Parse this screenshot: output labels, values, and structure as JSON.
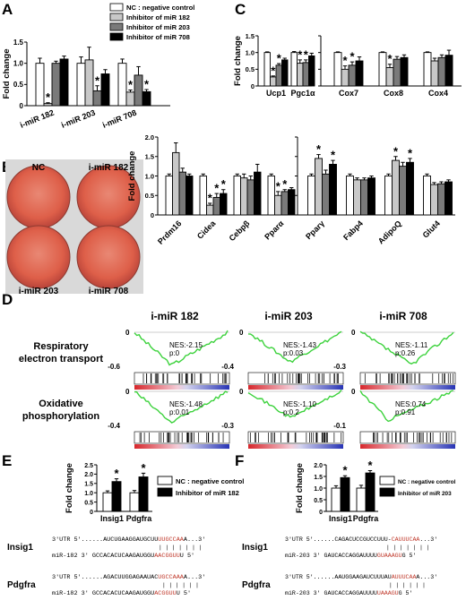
{
  "colors": {
    "nc": "#ffffff",
    "i182": "#c8c8c8",
    "i203": "#7a7a7a",
    "i708": "#000000",
    "curve": "#3cd23c",
    "seed_highlight": "#c0392b",
    "dish": "#e2664f"
  },
  "panel_letters": [
    "A",
    "B",
    "C",
    "D",
    "E",
    "F"
  ],
  "legend_a": [
    {
      "label": "NC : negative control",
      "key": "nc"
    },
    {
      "label": "Inhibitor of miR 182",
      "key": "i182"
    },
    {
      "label": "Inhibitor of miR 203",
      "key": "i203"
    },
    {
      "label": "Inhibitor of miR 708",
      "key": "i708"
    }
  ],
  "fold_change_label": "Fold change",
  "dish_labels": [
    "NC",
    "i-miR 182",
    "i-miR 203",
    "i-miR 708"
  ],
  "chart_data": [
    {
      "id": "A",
      "type": "bar",
      "ylabel": "Fold change",
      "ylim": [
        0,
        1.5
      ],
      "yticks": [
        "0",
        "0.5",
        "1.0",
        "1.5"
      ],
      "categories": [
        "i-miR 182",
        "i-miR 203",
        "i-miR 708"
      ],
      "series": [
        {
          "name": "NC : negative control",
          "key": "nc",
          "values": [
            1.0,
            1.0,
            1.0
          ],
          "err": [
            0.12,
            0.15,
            0.1
          ]
        },
        {
          "name": "Inhibitor of miR 182",
          "key": "i182",
          "values": [
            0.05,
            1.08,
            0.32
          ],
          "err": [
            0.02,
            0.3,
            0.05
          ]
        },
        {
          "name": "Inhibitor of miR 203",
          "key": "i203",
          "values": [
            1.0,
            0.35,
            0.72
          ],
          "err": [
            0.05,
            0.12,
            0.2
          ]
        },
        {
          "name": "Inhibitor of miR 708",
          "key": "i708",
          "values": [
            1.1,
            0.75,
            0.33
          ],
          "err": [
            0.07,
            0.1,
            0.05
          ]
        }
      ],
      "stars": [
        [
          0,
          1
        ],
        [
          1,
          2
        ],
        [
          2,
          1
        ],
        [
          2,
          3
        ]
      ]
    },
    {
      "id": "C-left",
      "type": "bar",
      "ylabel": "Fold change",
      "ylim": [
        0,
        1.5
      ],
      "yticks": [
        "0",
        "0.5",
        "1.0",
        "1.5"
      ],
      "categories": [
        "Ucp1",
        "Pgc1α"
      ],
      "series": [
        {
          "key": "nc",
          "values": [
            1.0,
            1.0
          ],
          "err": [
            0.02,
            0.03
          ]
        },
        {
          "key": "i182",
          "values": [
            0.27,
            0.68
          ],
          "err": [
            0.03,
            0.1
          ]
        },
        {
          "key": "i203",
          "values": [
            0.62,
            0.7
          ],
          "err": [
            0.05,
            0.08
          ]
        },
        {
          "key": "i708",
          "values": [
            0.78,
            0.9
          ],
          "err": [
            0.05,
            0.08
          ]
        }
      ],
      "stars": [
        [
          0,
          1
        ],
        [
          0,
          2
        ],
        [
          1,
          1
        ],
        [
          1,
          2
        ]
      ]
    },
    {
      "id": "C-right",
      "type": "bar",
      "ylim": [
        0,
        1.5
      ],
      "categories": [
        "Cox7",
        "Cox8",
        "Cox4"
      ],
      "series": [
        {
          "key": "nc",
          "values": [
            1.0,
            1.0,
            1.0
          ],
          "err": [
            0.02,
            0.02,
            0.02
          ]
        },
        {
          "key": "i182",
          "values": [
            0.5,
            0.55,
            0.75
          ],
          "err": [
            0.1,
            0.1,
            0.08
          ]
        },
        {
          "key": "i203",
          "values": [
            0.62,
            0.8,
            0.85
          ],
          "err": [
            0.1,
            0.08,
            0.08
          ]
        },
        {
          "key": "i708",
          "values": [
            0.75,
            0.85,
            0.92
          ],
          "err": [
            0.12,
            0.08,
            0.15
          ]
        }
      ],
      "stars": [
        [
          0,
          1
        ],
        [
          0,
          2
        ],
        [
          1,
          1
        ]
      ]
    },
    {
      "id": "B-left",
      "type": "bar",
      "ylabel": "Fold change",
      "ylim": [
        0,
        2.0
      ],
      "yticks": [
        "0",
        "0.5",
        "1.0",
        "1.5",
        "2.0"
      ],
      "categories": [
        "Prdm16",
        "Cidea",
        "Cebpβ",
        "Pparα"
      ],
      "series": [
        {
          "key": "nc",
          "values": [
            1.0,
            1.0,
            1.0,
            1.0
          ],
          "err": [
            0.05,
            0.05,
            0.05,
            0.05
          ]
        },
        {
          "key": "i182",
          "values": [
            1.6,
            0.25,
            0.95,
            0.5
          ],
          "err": [
            0.25,
            0.05,
            0.1,
            0.1
          ]
        },
        {
          "key": "i203",
          "values": [
            1.1,
            0.45,
            0.9,
            0.6
          ],
          "err": [
            0.1,
            0.1,
            0.1,
            0.05
          ]
        },
        {
          "key": "i708",
          "values": [
            1.0,
            0.55,
            1.1,
            0.65
          ],
          "err": [
            0.05,
            0.1,
            0.2,
            0.05
          ]
        }
      ],
      "stars": [
        [
          1,
          1
        ],
        [
          1,
          2
        ],
        [
          1,
          3
        ],
        [
          3,
          1
        ],
        [
          3,
          2
        ]
      ]
    },
    {
      "id": "B-right",
      "type": "bar",
      "ylim": [
        0,
        2.0
      ],
      "categories": [
        "Pparγ",
        "Fabp4",
        "AdipoQ",
        "Glut4"
      ],
      "series": [
        {
          "key": "nc",
          "values": [
            1.0,
            1.0,
            1.0,
            1.0
          ],
          "err": [
            0.05,
            0.05,
            0.05,
            0.05
          ]
        },
        {
          "key": "i182",
          "values": [
            1.45,
            0.9,
            1.4,
            0.78
          ],
          "err": [
            0.1,
            0.05,
            0.1,
            0.05
          ]
        },
        {
          "key": "i203",
          "values": [
            1.05,
            0.9,
            1.25,
            0.8
          ],
          "err": [
            0.1,
            0.05,
            0.1,
            0.05
          ]
        },
        {
          "key": "i708",
          "values": [
            1.3,
            0.95,
            1.35,
            0.85
          ],
          "err": [
            0.1,
            0.05,
            0.1,
            0.05
          ]
        }
      ],
      "stars": [
        [
          0,
          1
        ],
        [
          0,
          3
        ],
        [
          2,
          1
        ],
        [
          2,
          3
        ]
      ]
    },
    {
      "id": "E",
      "type": "bar",
      "ylabel": "Fold change",
      "ylim": [
        0,
        2.5
      ],
      "yticks": [
        "0",
        "0.5",
        "1.0",
        "1.5",
        "2.0",
        "2.5"
      ],
      "categories": [
        "Insig1",
        "Pdgfra"
      ],
      "series": [
        {
          "name": "NC : negative control",
          "key": "nc",
          "values": [
            1.0,
            1.0
          ],
          "err": [
            0.1,
            0.12
          ]
        },
        {
          "name": "Inhibitor of miR 182",
          "key": "i708",
          "values": [
            1.6,
            1.85
          ],
          "err": [
            0.15,
            0.2
          ]
        }
      ],
      "stars": [
        [
          0,
          1
        ],
        [
          1,
          1
        ]
      ]
    },
    {
      "id": "F",
      "type": "bar",
      "ylabel": "Fold change",
      "ylim": [
        0,
        2.0
      ],
      "yticks": [
        "0",
        "0.5",
        "1.0",
        "1.5",
        "2.0"
      ],
      "categories": [
        "Insig1",
        "Pdgfra"
      ],
      "series": [
        {
          "name": "NC : negative control",
          "key": "nc",
          "values": [
            1.0,
            1.0
          ],
          "err": [
            0.1,
            0.12
          ]
        },
        {
          "name": "Inhibitor of miR 203",
          "key": "i708",
          "values": [
            1.45,
            1.65
          ],
          "err": [
            0.08,
            0.1
          ]
        }
      ],
      "stars": [
        [
          0,
          1
        ],
        [
          1,
          1
        ]
      ]
    }
  ],
  "gsea": {
    "columns": [
      "i-miR 182",
      "i-miR 203",
      "i-miR 708"
    ],
    "rows": [
      "Respiratory\nelectron transport",
      "Oxidative\nphosphorylation"
    ],
    "panels": [
      {
        "row": 0,
        "col": 0,
        "nes": "NES:-2.15",
        "p": "p:0",
        "ytop": "0",
        "ybot": "-0.6",
        "min": -0.55,
        "minpos": 0.4
      },
      {
        "row": 0,
        "col": 1,
        "nes": "NES:-1.43",
        "p": "p:0.03",
        "ytop": "0",
        "ybot": "-0.4",
        "min": -0.33,
        "minpos": 0.45
      },
      {
        "row": 0,
        "col": 2,
        "nes": "NES:-1.11",
        "p": "p:0.26",
        "ytop": "0",
        "ybot": "-0.3",
        "min": -0.27,
        "minpos": 0.55
      },
      {
        "row": 1,
        "col": 0,
        "nes": "NES:-1.48",
        "p": "p:0.01",
        "ytop": "0",
        "ybot": "-0.4",
        "min": -0.35,
        "minpos": 0.4
      },
      {
        "row": 1,
        "col": 1,
        "nes": "NES:-1.10",
        "p": "p:0.2",
        "ytop": "0",
        "ybot": "-0.3",
        "min": -0.22,
        "minpos": 0.45
      },
      {
        "row": 1,
        "col": 2,
        "nes": "NES:0.74",
        "p": "p:0.91",
        "ytop": "0",
        "ybot": "-0.1",
        "min": -0.08,
        "minpos": 0.3
      }
    ]
  },
  "seq_e": [
    {
      "gene": "Insig1",
      "utr": {
        "prefix": "3'UTR  5'......AUCUGAAGGAUGCUU",
        "seed": "UUGCCAA",
        "suffix": "A...3'"
      },
      "mir": {
        "prefix": "miR-182  3'  GCCACACUCAAGAUGGU",
        "seed": "AACGGUU",
        "suffix": "U   5'"
      }
    },
    {
      "gene": "Pdgfra",
      "utr": {
        "prefix": "3'UTR  5'......AGACUUGGAGAAUAC",
        "seed": "UGCCAAA",
        "suffix": "A...3'"
      },
      "mir": {
        "prefix": "miR-182  3'  GCCACACUCAAGAUGGU",
        "seed": "ACGGUU",
        "suffix": "U   5'"
      }
    }
  ],
  "seq_f": [
    {
      "gene": "Insig1",
      "utr": {
        "prefix": "3'UTR  5'......CAGACUCCGUCCUUU-",
        "seed": "CAUUUCAA",
        "suffix": "...3'"
      },
      "mir": {
        "prefix": "miR-203  3'  GAUCACCAGGAUUUU",
        "seed": "GUAAAGU",
        "suffix": "G   5'"
      }
    },
    {
      "gene": "Pdgfra",
      "utr": {
        "prefix": "3'UTR  5'......AAUGGAAGAUCUUUAU",
        "seed": "AUUUCAA",
        "suffix": "A...3'"
      },
      "mir": {
        "prefix": "miR-203  3'  GAUCACCAGGAUUUU",
        "seed": "UAAAGU",
        "suffix": "G   5'"
      }
    }
  ]
}
